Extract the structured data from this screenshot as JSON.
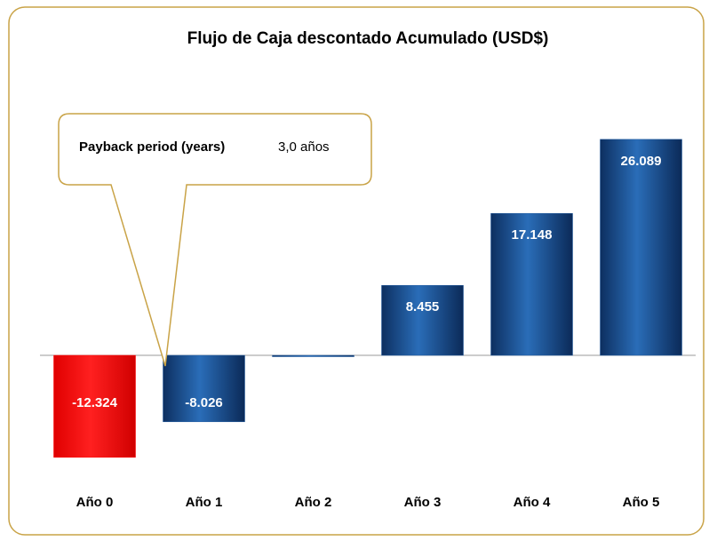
{
  "chart_data": {
    "type": "bar",
    "title": "Flujo de Caja descontado Acumulado (USD$)",
    "categories": [
      "Año 0",
      "Año 1",
      "Año 2",
      "Año 3",
      "Año 4",
      "Año 5"
    ],
    "values": [
      -12324,
      -8026,
      -150,
      8455,
      17148,
      26089
    ],
    "value_labels": [
      "-12.324",
      "-8.026",
      null,
      "8.455",
      "17.148",
      "26.089"
    ],
    "colors": [
      "#ff0000",
      "#1f5aa0",
      "#1f5aa0",
      "#1f5aa0",
      "#1f5aa0",
      "#1f5aa0"
    ],
    "ylim": [
      -15000,
      30000
    ],
    "annotation": {
      "label": "Payback period (years)",
      "value": "3,0 años"
    }
  }
}
